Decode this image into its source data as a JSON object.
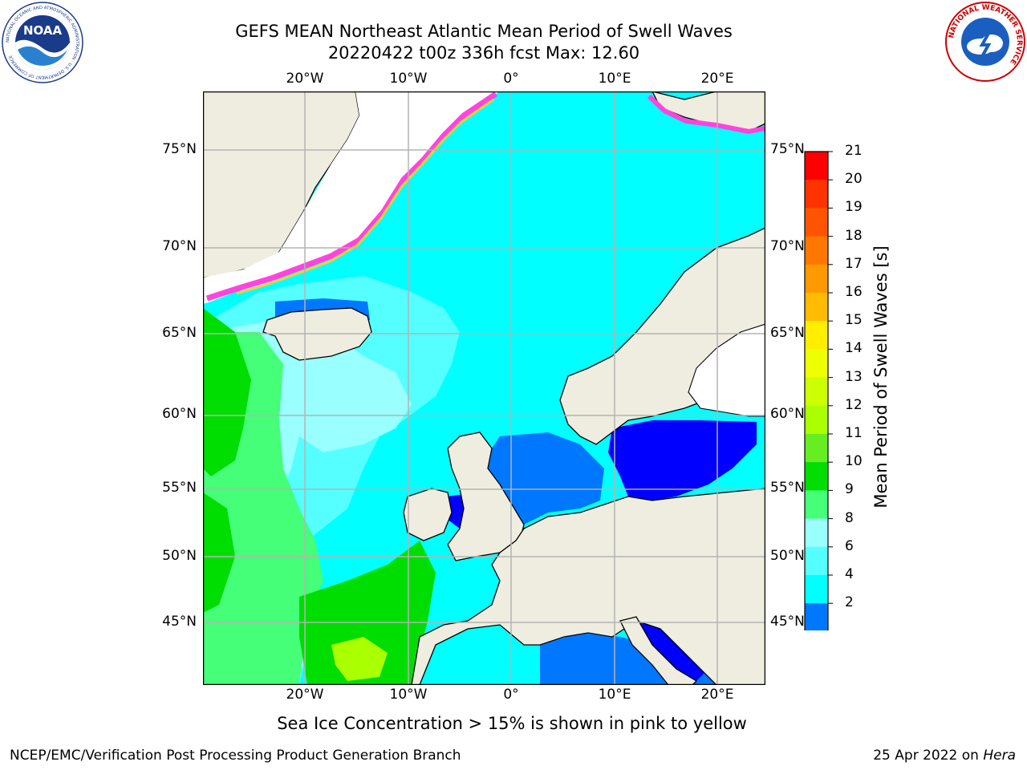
{
  "header": {
    "title": "GEFS MEAN Northeast Atlantic Mean Period of Swell Waves",
    "subtitle": "20220422 t00z 336h fcst   Max: 12.60"
  },
  "map": {
    "lon_labels_top": [
      "20°W",
      "10°W",
      "0°",
      "10°E",
      "20°E"
    ],
    "lon_labels_bottom": [
      "20°W",
      "10°W",
      "0°",
      "10°E",
      "20°E"
    ],
    "lat_labels_left": [
      "75°N",
      "70°N",
      "65°N",
      "60°N",
      "55°N",
      "50°N",
      "45°N"
    ],
    "lat_labels_right": [
      "75°N",
      "70°N",
      "65°N",
      "60°N",
      "55°N",
      "50°N",
      "45°N"
    ],
    "colors": {
      "land": "#efede0",
      "ice_free_white": "#ffffff",
      "grid": "#b3b3b3"
    }
  },
  "colorbar": {
    "title": "Mean Period of Swell Waves [s]",
    "ticks": [
      "21",
      "20",
      "19",
      "18",
      "17",
      "16",
      "15",
      "14",
      "13",
      "12",
      "11",
      "10",
      "9",
      "8",
      "6",
      "4",
      "2"
    ],
    "colors": [
      "#ff0000",
      "#ff3300",
      "#ff5500",
      "#ff7700",
      "#ff9900",
      "#ffbb00",
      "#ffee00",
      "#eeff00",
      "#ccff00",
      "#aaff00",
      "#66ee22",
      "#00dd00",
      "#44ff77",
      "#99ffff",
      "#55ffff",
      "#00ffff",
      "#0077ff"
    ],
    "under_color": "#0000ff"
  },
  "footer": {
    "note": "Sea Ice Concentration > 15% is shown in pink to yellow",
    "left": "NCEP/EMC/Verification Post Processing Product Generation Branch",
    "right_date": "25 Apr 2022 on ",
    "right_host": "Hera"
  },
  "logos": {
    "noaa_text": "NOAA",
    "noaa_ring": "NATIONAL OCEANIC AND ATMOSPHERIC ADMINISTRATION · U.S. DEPARTMENT OF COMMERCE",
    "nws_ring": "NATIONAL WEATHER SERVICE"
  }
}
